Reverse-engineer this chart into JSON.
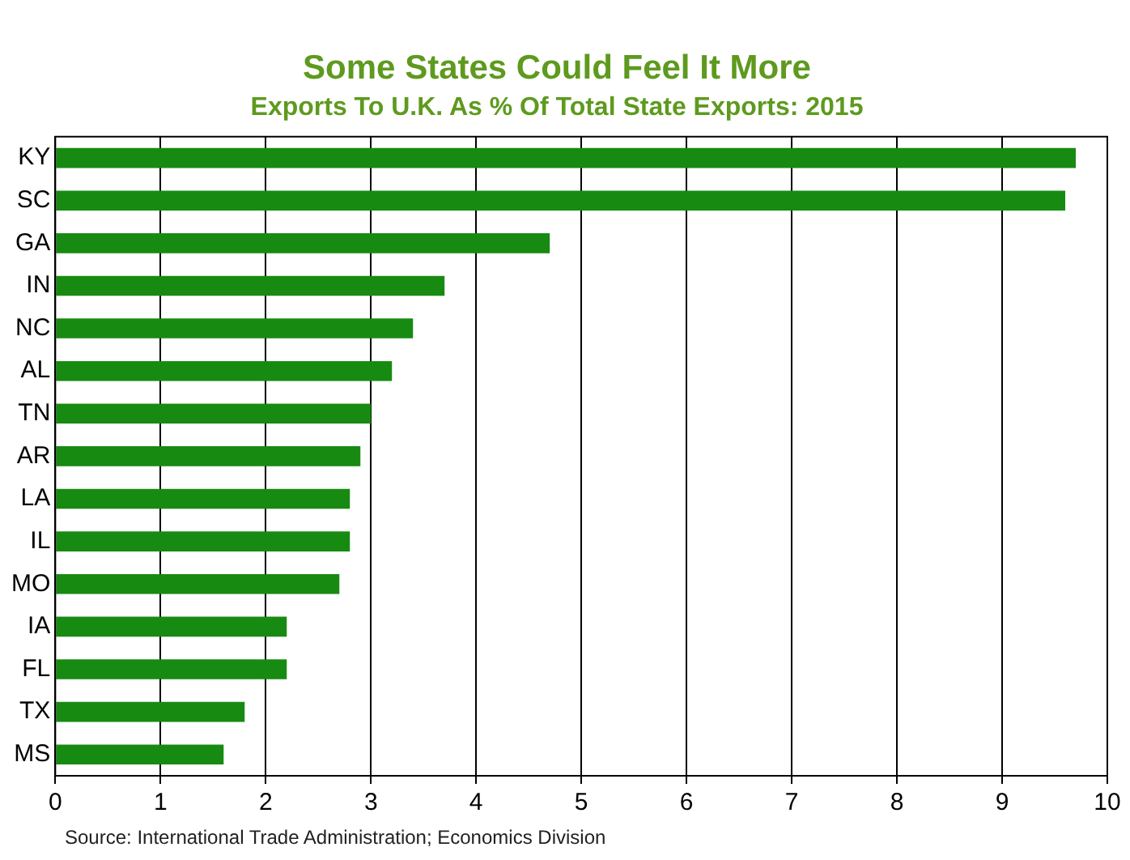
{
  "chart_data": {
    "type": "bar",
    "orientation": "horizontal",
    "title": "Some States Could Feel It More",
    "subtitle": "Exports To U.K. As % Of Total State Exports: 2015",
    "categories": [
      "KY",
      "SC",
      "GA",
      "IN",
      "NC",
      "AL",
      "TN",
      "AR",
      "LA",
      "IL",
      "MO",
      "IA",
      "FL",
      "TX",
      "MS"
    ],
    "values": [
      9.7,
      9.6,
      4.7,
      3.7,
      3.4,
      3.2,
      3.0,
      2.9,
      2.8,
      2.8,
      2.7,
      2.2,
      2.2,
      1.8,
      1.6
    ],
    "color": "#178a12",
    "xlim": [
      0,
      10
    ],
    "xticks": [
      0,
      1,
      2,
      3,
      4,
      5,
      6,
      7,
      8,
      9,
      10
    ],
    "grid": "x",
    "annotations": [
      "Source: International Trade Administration; Economics Division"
    ]
  }
}
